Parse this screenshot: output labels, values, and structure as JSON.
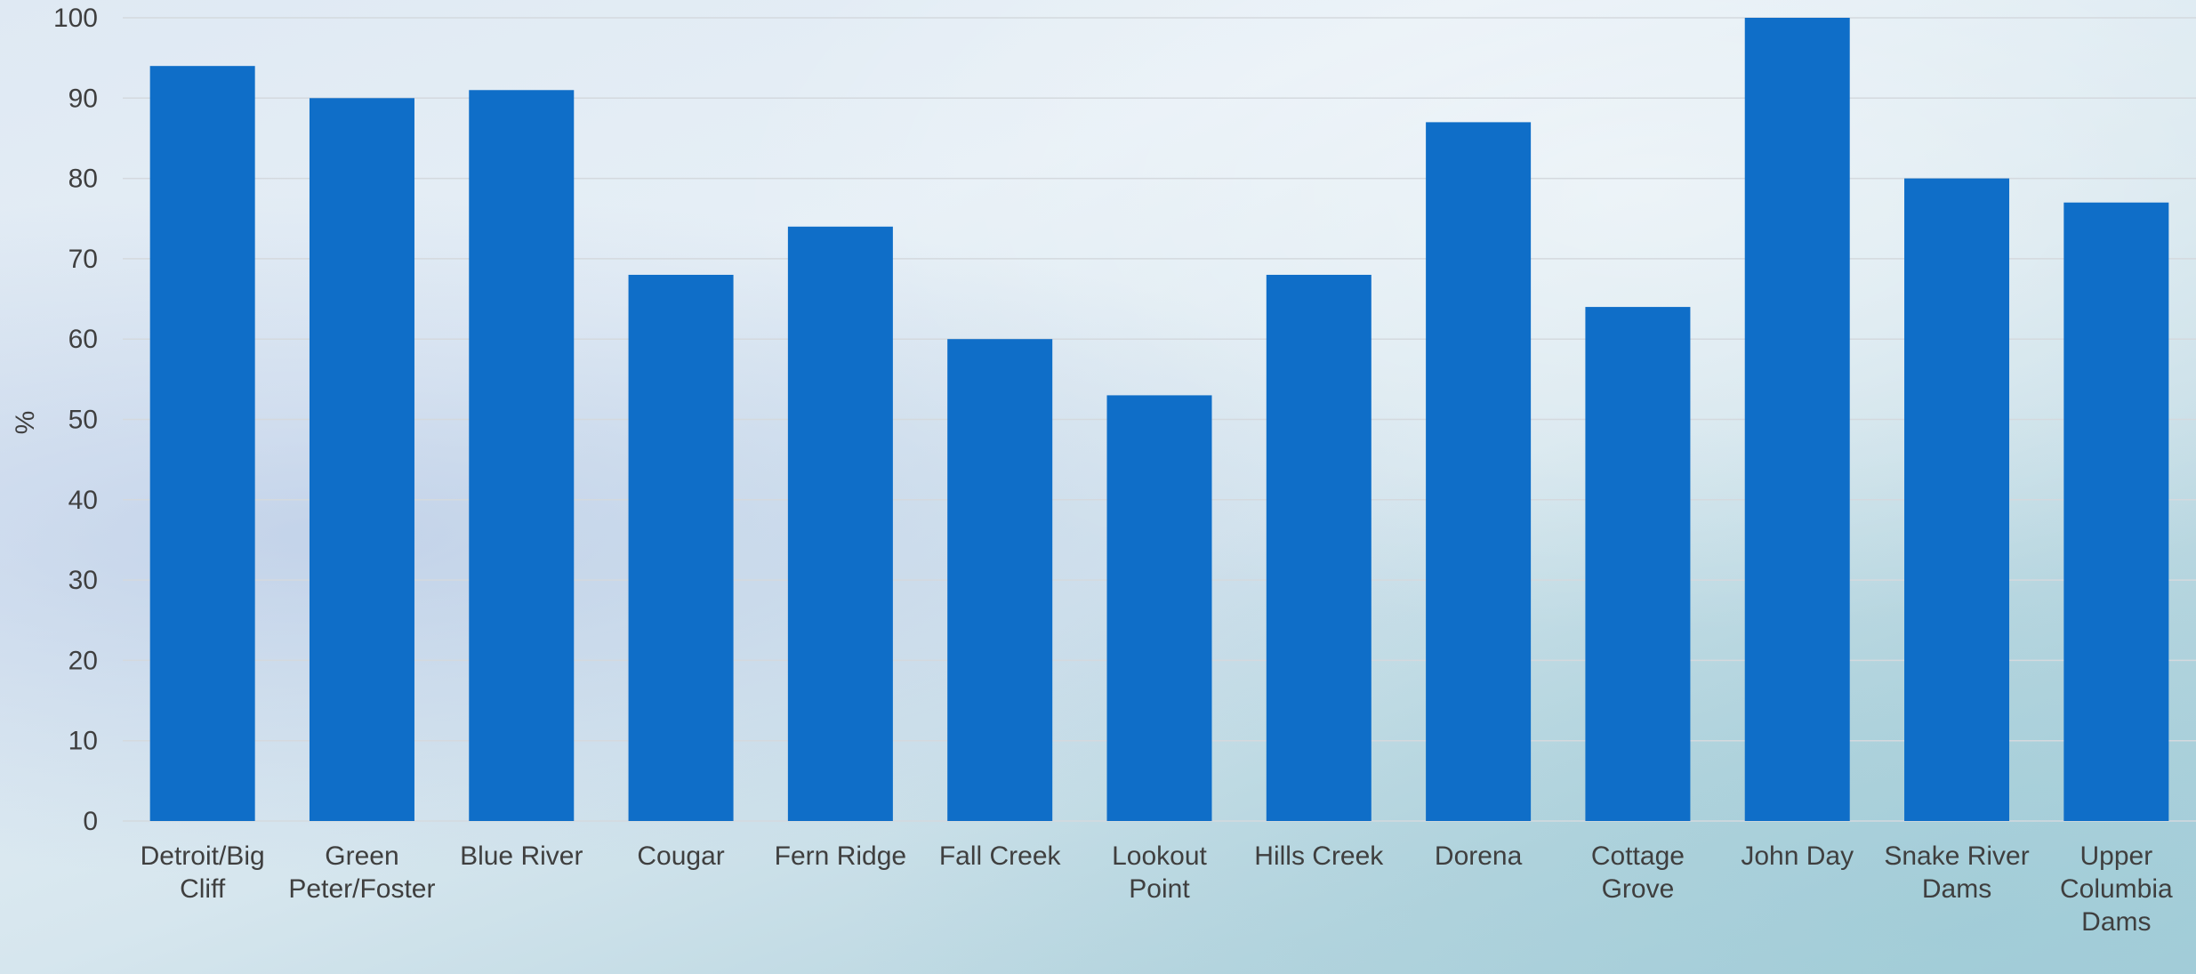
{
  "chart_data": {
    "type": "bar",
    "title": "",
    "xlabel": "",
    "ylabel": "%",
    "ylim": [
      0,
      100
    ],
    "yticks": [
      0,
      10,
      20,
      30,
      40,
      50,
      60,
      70,
      80,
      90,
      100
    ],
    "grid": true,
    "bar_color": "#0f6ec8",
    "categories": [
      "Detroit/Big Cliff",
      "Green Peter/Foster",
      "Blue River",
      "Cougar",
      "Fern Ridge",
      "Fall Creek",
      "Lookout Point",
      "Hills Creek",
      "Dorena",
      "Cottage Grove",
      "John Day",
      "Snake River Dams",
      "Upper Columbia Dams"
    ],
    "category_lines": [
      [
        "Detroit/Big",
        "Cliff"
      ],
      [
        "Green",
        "Peter/Foster"
      ],
      [
        "Blue River"
      ],
      [
        "Cougar"
      ],
      [
        "Fern Ridge"
      ],
      [
        "Fall Creek"
      ],
      [
        "Lookout",
        "Point"
      ],
      [
        "Hills Creek"
      ],
      [
        "Dorena"
      ],
      [
        "Cottage",
        "Grove"
      ],
      [
        "John Day"
      ],
      [
        "Snake River",
        "Dams"
      ],
      [
        "Upper",
        "Columbia",
        "Dams"
      ]
    ],
    "values": [
      94,
      90,
      91,
      68,
      74,
      60,
      53,
      68,
      87,
      64,
      100,
      80,
      77
    ]
  }
}
